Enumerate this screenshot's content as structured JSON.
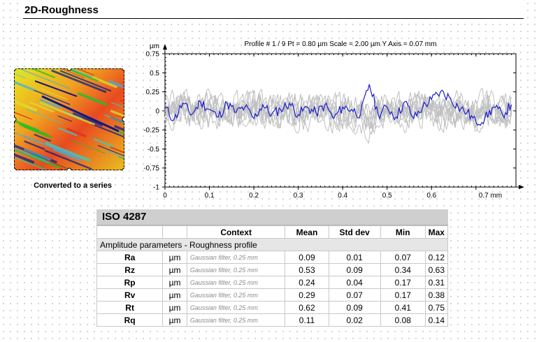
{
  "page": {
    "title": "2D-Roughness"
  },
  "thumbnail": {
    "caption": "Converted to a series"
  },
  "chart_data": {
    "type": "line",
    "title": "Profile # 1 / 9 Pt = 0.80 µm  Scale = 2.00 µm Y Axis = 0.07 mm",
    "xlabel": "mm",
    "ylabel": "µm",
    "xlim": [
      0,
      0.79
    ],
    "ylim": [
      -1,
      0.75
    ],
    "x_ticks": [
      "0",
      "0.1",
      "0.2",
      "0.3",
      "0.4",
      "0.5",
      "0.6",
      "0.7 mm"
    ],
    "x_tick_values": [
      0,
      0.1,
      0.2,
      0.3,
      0.4,
      0.5,
      0.6,
      0.7
    ],
    "y_ticks": [
      "0.75",
      "0.5",
      "0.25",
      "0",
      "-0.25",
      "-0.5",
      "-0.75",
      "-1"
    ],
    "y_tick_values": [
      0.75,
      0.5,
      0.25,
      0,
      -0.25,
      -0.5,
      -0.75,
      -1
    ],
    "grid": false,
    "series": [
      {
        "color": "#1a1acc",
        "x": [
          0.0,
          0.02,
          0.04,
          0.06,
          0.08,
          0.1,
          0.12,
          0.14,
          0.16,
          0.18,
          0.2,
          0.22,
          0.24,
          0.26,
          0.28,
          0.3,
          0.32,
          0.34,
          0.36,
          0.38,
          0.4,
          0.42,
          0.44,
          0.46,
          0.48,
          0.5,
          0.52,
          0.54,
          0.56,
          0.58,
          0.6,
          0.62,
          0.64,
          0.66,
          0.68,
          0.7,
          0.72,
          0.74,
          0.76,
          0.78
        ],
        "values": [
          0.05,
          -0.12,
          0.1,
          -0.05,
          0.12,
          0.02,
          -0.08,
          0.1,
          -0.02,
          0.05,
          -0.1,
          0.08,
          -0.05,
          0.02,
          0.1,
          -0.05,
          0.05,
          -0.03,
          0.08,
          -0.1,
          0.05,
          0.02,
          -0.05,
          0.35,
          -0.05,
          0.05,
          -0.08,
          0.12,
          -0.1,
          0.05,
          0.15,
          0.25,
          0.18,
          0.05,
          -0.02,
          -0.15,
          -0.1,
          0.05,
          -0.05,
          0.08
        ]
      }
    ],
    "background_profiles_color": "#c0c0c0"
  },
  "table": {
    "title": "ISO 4287",
    "headers": [
      "",
      "",
      "Context",
      "Mean",
      "Std dev",
      "Min",
      "Max"
    ],
    "group_label": "Amplitude parameters - Roughness profile",
    "rows": [
      {
        "param": "Ra",
        "unit": "µm",
        "context": "Gaussian filter, 0.25 mm",
        "mean": "0.09",
        "std": "0.01",
        "min": "0.07",
        "max": "0.12"
      },
      {
        "param": "Rz",
        "unit": "µm",
        "context": "Gaussian filter, 0.25 mm",
        "mean": "0.53",
        "std": "0.09",
        "min": "0.34",
        "max": "0.63"
      },
      {
        "param": "Rp",
        "unit": "µm",
        "context": "Gaussian filter, 0.25 mm",
        "mean": "0.24",
        "std": "0.04",
        "min": "0.17",
        "max": "0.31"
      },
      {
        "param": "Rv",
        "unit": "µm",
        "context": "Gaussian filter, 0.25 mm",
        "mean": "0.29",
        "std": "0.07",
        "min": "0.17",
        "max": "0.38"
      },
      {
        "param": "Rt",
        "unit": "µm",
        "context": "Gaussian filter, 0.25 mm",
        "mean": "0.62",
        "std": "0.09",
        "min": "0.41",
        "max": "0.75"
      },
      {
        "param": "Rq",
        "unit": "µm",
        "context": "Gaussian filter, 0.25 mm",
        "mean": "0.11",
        "std": "0.02",
        "min": "0.08",
        "max": "0.14"
      }
    ]
  }
}
